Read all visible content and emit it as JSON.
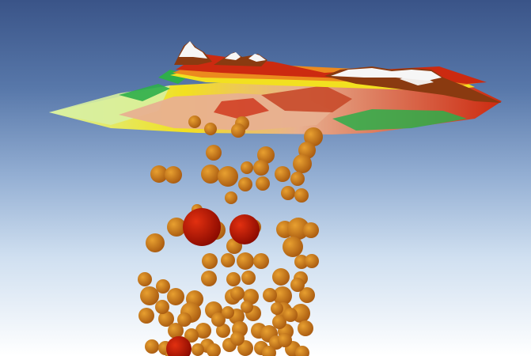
{
  "scene": {
    "sky_colors": {
      "top": "#3a5488",
      "upper_mid": "#5878aa",
      "mid": "#95b0d4",
      "lower": "#cfdff0",
      "bottom": "#ffffff"
    },
    "terrain_colors": {
      "lowland": "#d8f0a0",
      "grass": "#2eae4a",
      "yellow": "#f2e020",
      "orange": "#ec8a1e",
      "red": "#cc2a10",
      "brown": "#8a3a10",
      "snow": "#f6f6f6",
      "valley": "#e8b090",
      "district_dark": "#c84a2a"
    },
    "sphere_colors": {
      "small_light": "#e8a030",
      "small_dark": "#a85a10",
      "large_light": "#e23010",
      "large_dark": "#8a0a00"
    },
    "sphere_layer": {
      "count_small": 96,
      "count_large": 3
    }
  }
}
